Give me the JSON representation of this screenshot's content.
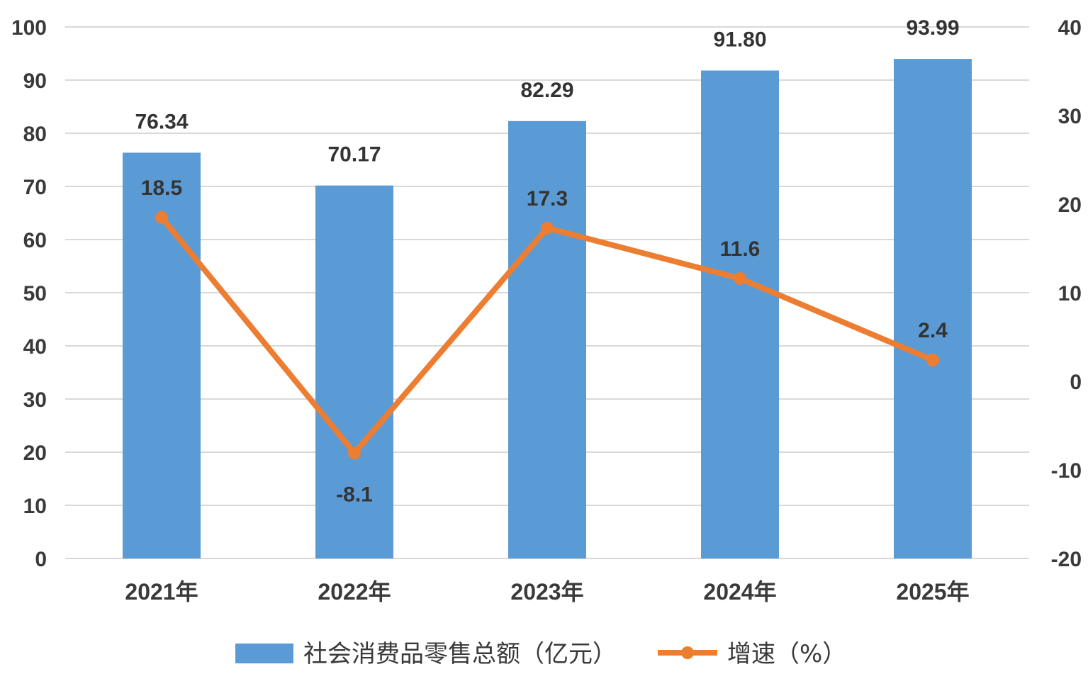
{
  "chart_data": {
    "type": "bar",
    "categories": [
      "2021年",
      "2022年",
      "2023年",
      "2024年",
      "2025年"
    ],
    "series": [
      {
        "name": "社会消费品零售总额（亿元）",
        "type": "bar",
        "axis": "left",
        "values": [
          76.34,
          70.17,
          82.29,
          91.8,
          93.99
        ],
        "labels": [
          "76.34",
          "70.17",
          "82.29",
          "91.80",
          "93.99"
        ],
        "color": "#5B9BD5"
      },
      {
        "name": "增速（%）",
        "type": "line",
        "axis": "right",
        "values": [
          18.5,
          -8.1,
          17.3,
          11.6,
          2.4
        ],
        "labels": [
          "18.5",
          "-8.1",
          "17.3",
          "11.6",
          "2.4"
        ],
        "color": "#ED7D31"
      }
    ],
    "y_left": {
      "ylim": [
        0,
        100
      ],
      "ticks": [
        "0",
        "10",
        "20",
        "30",
        "40",
        "50",
        "60",
        "70",
        "80",
        "90",
        "100"
      ]
    },
    "y_right": {
      "ylim": [
        -20,
        40
      ],
      "ticks": [
        "-20",
        "-10",
        "0",
        "10",
        "20",
        "30",
        "40"
      ]
    },
    "grid": true,
    "legend": "bottom"
  }
}
